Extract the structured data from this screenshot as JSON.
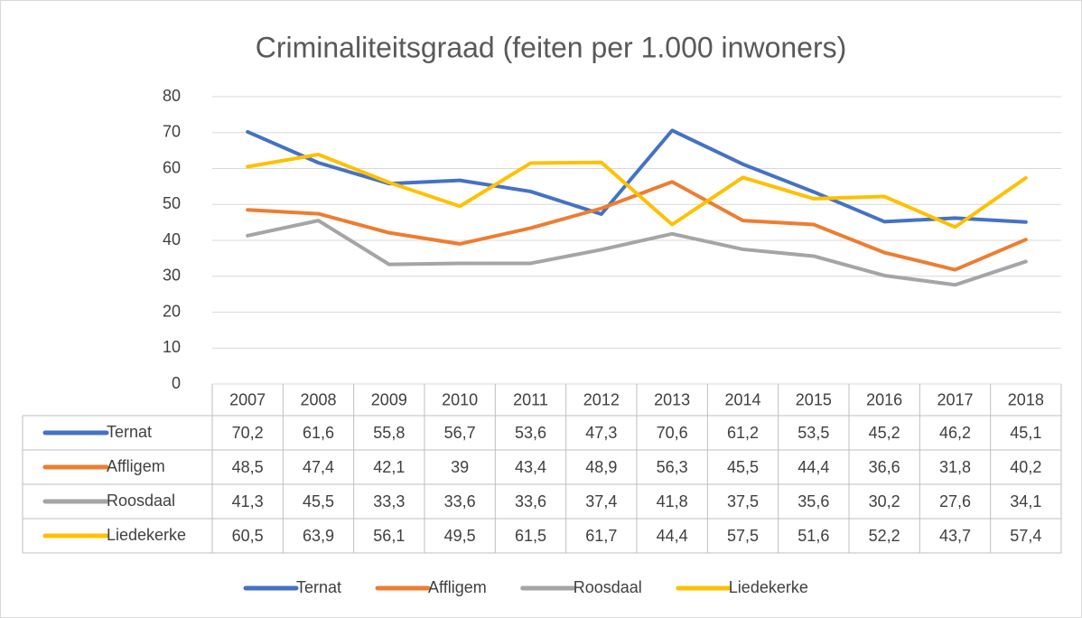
{
  "chart_data": {
    "type": "line",
    "title": "Criminaliteitsgraad (feiten per 1.000 inwoners)",
    "categories": [
      "2007",
      "2008",
      "2009",
      "2010",
      "2011",
      "2012",
      "2013",
      "2014",
      "2015",
      "2016",
      "2017",
      "2018"
    ],
    "series": [
      {
        "name": "Ternat",
        "color": "#4472c4",
        "values": [
          70.2,
          61.6,
          55.8,
          56.7,
          53.6,
          47.3,
          70.6,
          61.2,
          53.5,
          45.2,
          46.2,
          45.1
        ],
        "value_labels": [
          "70,2",
          "61,6",
          "55,8",
          "56,7",
          "53,6",
          "47,3",
          "70,6",
          "61,2",
          "53,5",
          "45,2",
          "46,2",
          "45,1"
        ]
      },
      {
        "name": "Affligem",
        "color": "#ed7d31",
        "values": [
          48.5,
          47.4,
          42.1,
          39,
          43.4,
          48.9,
          56.3,
          45.5,
          44.4,
          36.6,
          31.8,
          40.2
        ],
        "value_labels": [
          "48,5",
          "47,4",
          "42,1",
          "39",
          "43,4",
          "48,9",
          "56,3",
          "45,5",
          "44,4",
          "36,6",
          "31,8",
          "40,2"
        ]
      },
      {
        "name": "Roosdaal",
        "color": "#a5a5a5",
        "values": [
          41.3,
          45.5,
          33.3,
          33.6,
          33.6,
          37.4,
          41.8,
          37.5,
          35.6,
          30.2,
          27.6,
          34.1
        ],
        "value_labels": [
          "41,3",
          "45,5",
          "33,3",
          "33,6",
          "33,6",
          "37,4",
          "41,8",
          "37,5",
          "35,6",
          "30,2",
          "27,6",
          "34,1"
        ]
      },
      {
        "name": "Liedekerke",
        "color": "#ffc000",
        "values": [
          60.5,
          63.9,
          56.1,
          49.5,
          61.5,
          61.7,
          44.4,
          57.5,
          51.6,
          52.2,
          43.7,
          57.4
        ],
        "value_labels": [
          "60,5",
          "63,9",
          "56,1",
          "49,5",
          "61,5",
          "61,7",
          "44,4",
          "57,5",
          "51,6",
          "52,2",
          "43,7",
          "57,4"
        ]
      }
    ],
    "ylim": [
      0,
      80
    ],
    "yticks": [
      0,
      10,
      20,
      30,
      40,
      50,
      60,
      70,
      80
    ],
    "grid": true,
    "legend": "bottom"
  }
}
